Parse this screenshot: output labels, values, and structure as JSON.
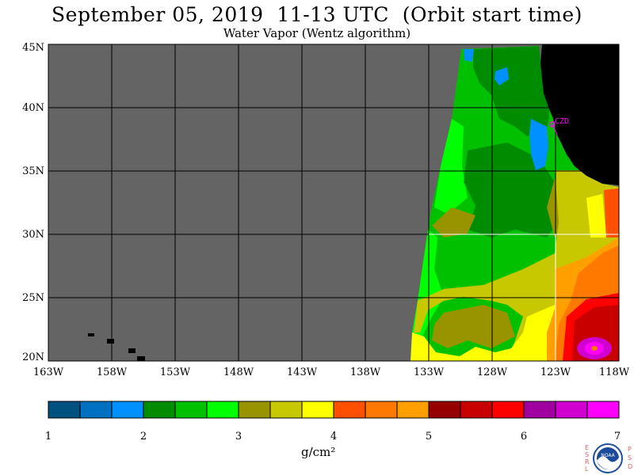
{
  "title": "September 05, 2019  11-13 UTC  (Orbit start time)",
  "subtitle": "Water Vapor (Wentz algorithm)",
  "map": {
    "lat_labels": [
      "45N",
      "40N",
      "35N",
      "30N",
      "25N",
      "20N"
    ],
    "lon_labels": [
      "163W",
      "158W",
      "153W",
      "148W",
      "143W",
      "138W",
      "133W",
      "128W",
      "123W",
      "118W"
    ],
    "station_label": "CZD",
    "colors": {
      "no_data": "#646464",
      "land": "#000000"
    }
  },
  "colorbar": {
    "tick_labels": [
      "1",
      "2",
      "3",
      "4",
      "5",
      "6",
      "7"
    ],
    "unit_label": "g/cm²",
    "colors": [
      "#005080",
      "#0070c0",
      "#0090ff",
      "#008c00",
      "#00c000",
      "#00ff00",
      "#989400",
      "#c8c800",
      "#ffff00",
      "#ff5000",
      "#ff7800",
      "#ffa000",
      "#960000",
      "#c80000",
      "#ff0000",
      "#a000a0",
      "#d000d0",
      "#ff00ff"
    ]
  },
  "logo": {
    "left_letters": [
      "E",
      "S",
      "R",
      "L"
    ],
    "right_letters": [
      "P",
      "S",
      "D"
    ],
    "badge_text": "NOAA"
  }
}
